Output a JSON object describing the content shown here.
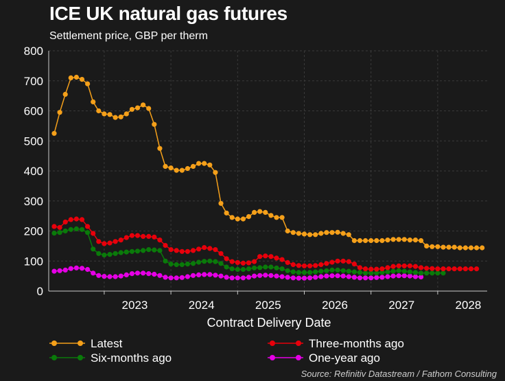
{
  "title": "ICE UK natural gas futures",
  "subtitle": "Settlement price, GBP per therm",
  "source": "Source: Refinitiv Datastream / Fathom Consulting",
  "colors": {
    "background": "#1a1a1a",
    "text": "#ffffff",
    "grid": "#3a3a3a"
  },
  "chart_data": {
    "type": "line",
    "title": "ICE UK natural gas futures",
    "subtitle": "Settlement price, GBP per therm",
    "xlabel": "Contract Delivery Date",
    "ylabel": "",
    "x_ticks": [
      "2023",
      "2024",
      "2025",
      "2026",
      "2027",
      "2028"
    ],
    "y_ticks": [
      "0",
      "100",
      "200",
      "300",
      "400",
      "500",
      "600",
      "700",
      "800"
    ],
    "ylim": [
      0,
      800
    ],
    "grid": true,
    "legend": "bottom",
    "x_start": "2022-04",
    "x_step": "monthly",
    "series": [
      {
        "name": "Latest",
        "color": "#f5a01a",
        "values": [
          525,
          595,
          655,
          710,
          712,
          705,
          690,
          630,
          600,
          590,
          588,
          578,
          580,
          590,
          605,
          610,
          620,
          608,
          555,
          475,
          415,
          410,
          402,
          402,
          408,
          415,
          425,
          425,
          420,
          395,
          292,
          260,
          245,
          240,
          240,
          248,
          262,
          265,
          262,
          252,
          245,
          245,
          200,
          195,
          192,
          190,
          188,
          188,
          192,
          195,
          195,
          196,
          192,
          188,
          168,
          168,
          168,
          168,
          168,
          168,
          170,
          172,
          172,
          172,
          170,
          170,
          168,
          150,
          148,
          148,
          146,
          146,
          146,
          144,
          144,
          144,
          144,
          144
        ]
      },
      {
        "name": "Three-months ago",
        "color": "#e8000b",
        "values": [
          215,
          212,
          230,
          238,
          240,
          238,
          215,
          192,
          165,
          158,
          160,
          165,
          170,
          178,
          185,
          185,
          182,
          182,
          180,
          170,
          152,
          138,
          135,
          132,
          132,
          135,
          140,
          145,
          142,
          138,
          125,
          108,
          98,
          95,
          93,
          94,
          98,
          115,
          117,
          115,
          110,
          105,
          95,
          88,
          85,
          84,
          84,
          85,
          88,
          92,
          96,
          100,
          100,
          98,
          90,
          78,
          74,
          73,
          73,
          74,
          78,
          82,
          84,
          84,
          84,
          82,
          78,
          76,
          75,
          74,
          74,
          74,
          74,
          74,
          74,
          74,
          74
        ]
      },
      {
        "name": "Six-months ago",
        "color": "#0a7a0a",
        "values": [
          193,
          195,
          200,
          205,
          207,
          205,
          195,
          140,
          125,
          120,
          122,
          125,
          128,
          130,
          132,
          133,
          135,
          138,
          137,
          135,
          100,
          90,
          88,
          88,
          90,
          92,
          96,
          99,
          100,
          98,
          92,
          80,
          74,
          72,
          72,
          74,
          77,
          78,
          80,
          80,
          77,
          74,
          68,
          64,
          62,
          62,
          62,
          64,
          66,
          68,
          70,
          70,
          68,
          66,
          64,
          62,
          60,
          60,
          60,
          62,
          64,
          66,
          68,
          66,
          64,
          62,
          60,
          60,
          60,
          60,
          60
        ]
      },
      {
        "name": "One-year ago",
        "color": "#e600e6",
        "values": [
          66,
          68,
          70,
          75,
          77,
          76,
          72,
          60,
          52,
          49,
          48,
          48,
          50,
          54,
          58,
          60,
          60,
          58,
          56,
          52,
          46,
          44,
          44,
          45,
          48,
          52,
          54,
          55,
          55,
          53,
          50,
          46,
          44,
          44,
          44,
          46,
          50,
          52,
          53,
          52,
          50,
          48,
          46,
          44,
          43,
          43,
          44,
          46,
          48,
          50,
          51,
          51,
          50,
          48,
          46,
          44,
          44,
          44,
          45,
          46,
          48,
          50,
          51,
          51,
          50,
          48,
          47
        ]
      }
    ]
  }
}
